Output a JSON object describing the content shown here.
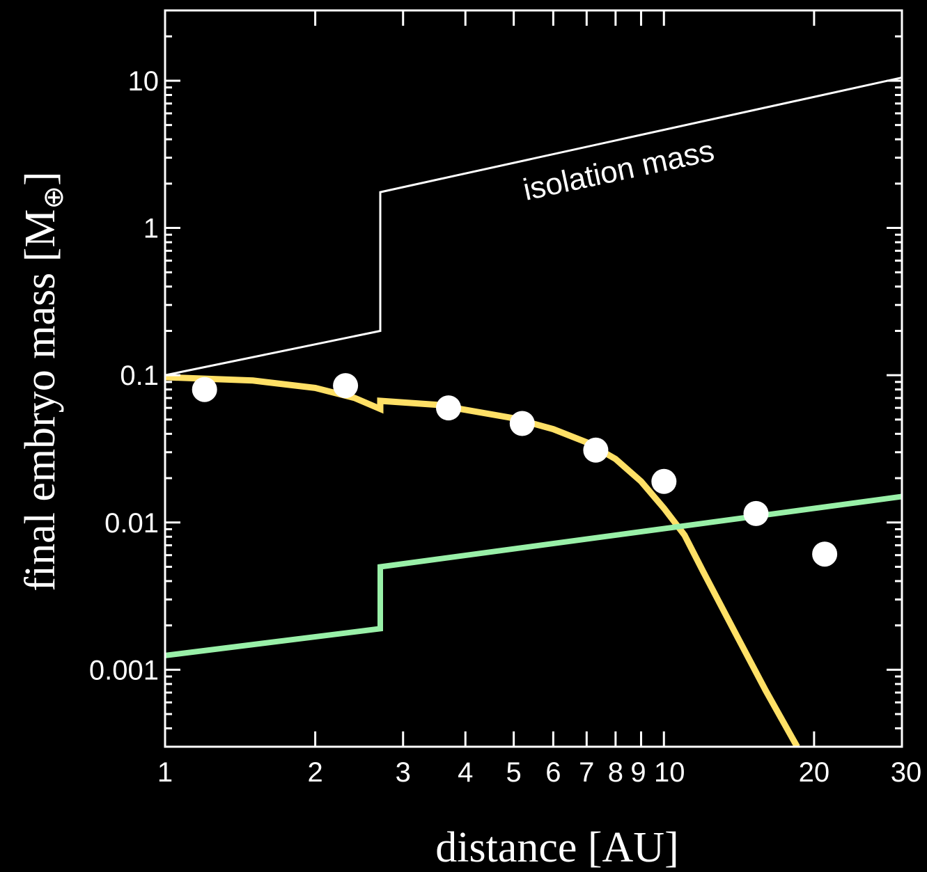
{
  "chart_data": {
    "type": "scatter",
    "title": "",
    "xlabel": "distance [AU]",
    "ylabel": "final embryo mass [M",
    "ylabel_subscript": "⊕",
    "ylabel_close": "]",
    "x_scale": "log",
    "y_scale": "log",
    "xlim": [
      1,
      30
    ],
    "ylim": [
      0.0003,
      30
    ],
    "x_ticks": [
      {
        "value": 1,
        "label": "1"
      },
      {
        "value": 2,
        "label": "2"
      },
      {
        "value": 3,
        "label": "3"
      },
      {
        "value": 4,
        "label": "4"
      },
      {
        "value": 5,
        "label": "5"
      },
      {
        "value": 6,
        "label": "6"
      },
      {
        "value": 7,
        "label": "7"
      },
      {
        "value": 8,
        "label": "8"
      },
      {
        "value": 9,
        "label": "9"
      },
      {
        "value": 10,
        "label": "10"
      },
      {
        "value": 20,
        "label": "20"
      },
      {
        "value": 30,
        "label": "30"
      }
    ],
    "y_ticks": [
      {
        "value": 0.001,
        "label": "0.001"
      },
      {
        "value": 0.01,
        "label": "0.01"
      },
      {
        "value": 0.1,
        "label": "0.1"
      },
      {
        "value": 1,
        "label": "1"
      },
      {
        "value": 10,
        "label": "10"
      }
    ],
    "grid": false,
    "annotations": [
      {
        "text": "isolation mass",
        "x": 15,
        "y": 4
      }
    ],
    "series": [
      {
        "kind": "line",
        "color": "#ffffff",
        "points": [
          [
            1,
            0.1
          ],
          [
            2.7,
            0.2
          ],
          [
            2.7,
            1.75
          ],
          [
            30,
            10.5
          ]
        ]
      },
      {
        "kind": "line",
        "color": "#ffe066",
        "points": [
          [
            1,
            0.097
          ],
          [
            1.5,
            0.092
          ],
          [
            2,
            0.082
          ],
          [
            2.4,
            0.07
          ],
          [
            2.7,
            0.059
          ],
          [
            2.7,
            0.067
          ],
          [
            3.5,
            0.063
          ],
          [
            5,
            0.051
          ],
          [
            6,
            0.043
          ],
          [
            7,
            0.035
          ],
          [
            8,
            0.027
          ],
          [
            9,
            0.019
          ],
          [
            10,
            0.0125
          ],
          [
            11,
            0.0082
          ],
          [
            12,
            0.0046
          ],
          [
            14,
            0.0017
          ],
          [
            16,
            0.00072
          ],
          [
            18.5,
            0.0003
          ]
        ]
      },
      {
        "kind": "line",
        "color": "#99f0a8",
        "points": [
          [
            1,
            0.00125
          ],
          [
            2.7,
            0.0019
          ],
          [
            2.7,
            0.005
          ],
          [
            30,
            0.015
          ]
        ]
      },
      {
        "kind": "scatter",
        "color": "#ffffff",
        "points": [
          [
            1.2,
            0.08
          ],
          [
            2.3,
            0.085
          ],
          [
            3.7,
            0.06
          ],
          [
            5.2,
            0.047
          ],
          [
            7.3,
            0.031
          ],
          [
            10,
            0.019
          ],
          [
            15.3,
            0.0115
          ],
          [
            21,
            0.0061
          ]
        ]
      }
    ]
  }
}
